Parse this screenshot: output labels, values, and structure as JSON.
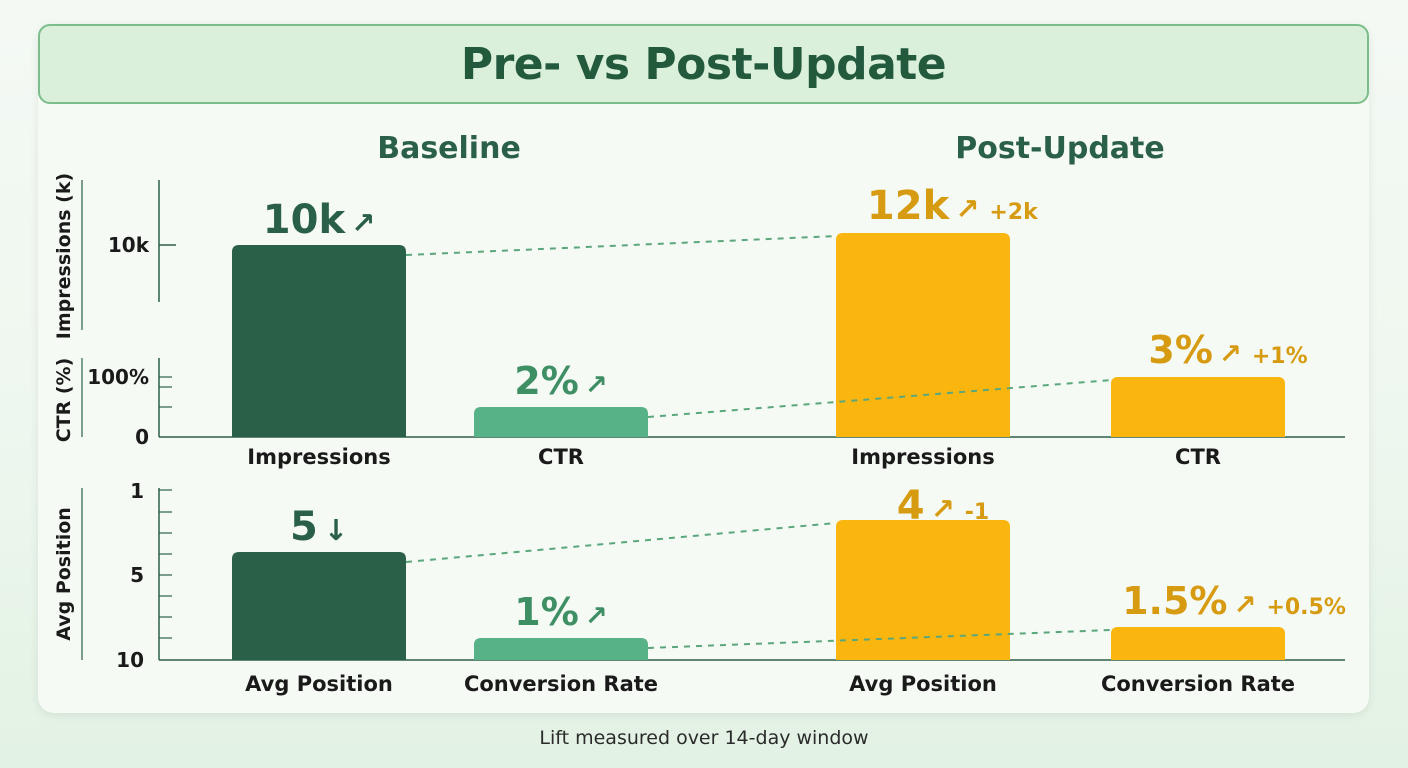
{
  "title": "Pre- vs Post-Update",
  "footnote": "Lift measured over 14-day window",
  "colors": {
    "baseline_dark": "#2b6048",
    "baseline_light": "#58b287",
    "baseline_text_dark": "#2b6048",
    "baseline_text_light": "#3f8f65",
    "post": "#fab60e",
    "post_text": "#d79b12",
    "connector": "#5aa77c",
    "axis": "#2b6048"
  },
  "chart_data": {
    "type": "bar",
    "groups": [
      {
        "label": "Baseline"
      },
      {
        "label": "Post-Update"
      }
    ],
    "top_panel": {
      "categories": [
        "Impressions",
        "CTR"
      ],
      "axes": [
        {
          "label": "Impressions (k)",
          "ticks": [
            "10k"
          ]
        },
        {
          "label": "CTR (%)",
          "ticks": [
            "100%",
            "0"
          ]
        }
      ],
      "series": [
        {
          "name": "Baseline",
          "values": [
            10,
            2
          ],
          "labels": [
            "10k",
            "2%"
          ],
          "arrows": [
            "↗",
            "↗"
          ],
          "deltas": [
            "",
            ""
          ]
        },
        {
          "name": "Post-Update",
          "values": [
            12,
            3
          ],
          "labels": [
            "12k",
            "3%"
          ],
          "arrows": [
            "↗",
            "↗"
          ],
          "deltas": [
            "+2k",
            "+1%"
          ]
        }
      ]
    },
    "bottom_panel": {
      "categories": [
        "Avg Position",
        "Conversion Rate"
      ],
      "axes": [
        {
          "label": "Avg Position",
          "ticks": [
            "1",
            "5",
            "10"
          ],
          "inverted": true
        }
      ],
      "series": [
        {
          "name": "Baseline",
          "values": [
            5,
            1
          ],
          "labels": [
            "5",
            "1%"
          ],
          "arrows": [
            "↓",
            "↗"
          ],
          "deltas": [
            "",
            ""
          ]
        },
        {
          "name": "Post-Update",
          "values": [
            4,
            1.5
          ],
          "labels": [
            "4",
            "1.5%"
          ],
          "arrows": [
            "↗",
            "↗"
          ],
          "deltas": [
            "-1",
            "+0.5%"
          ]
        }
      ]
    }
  }
}
